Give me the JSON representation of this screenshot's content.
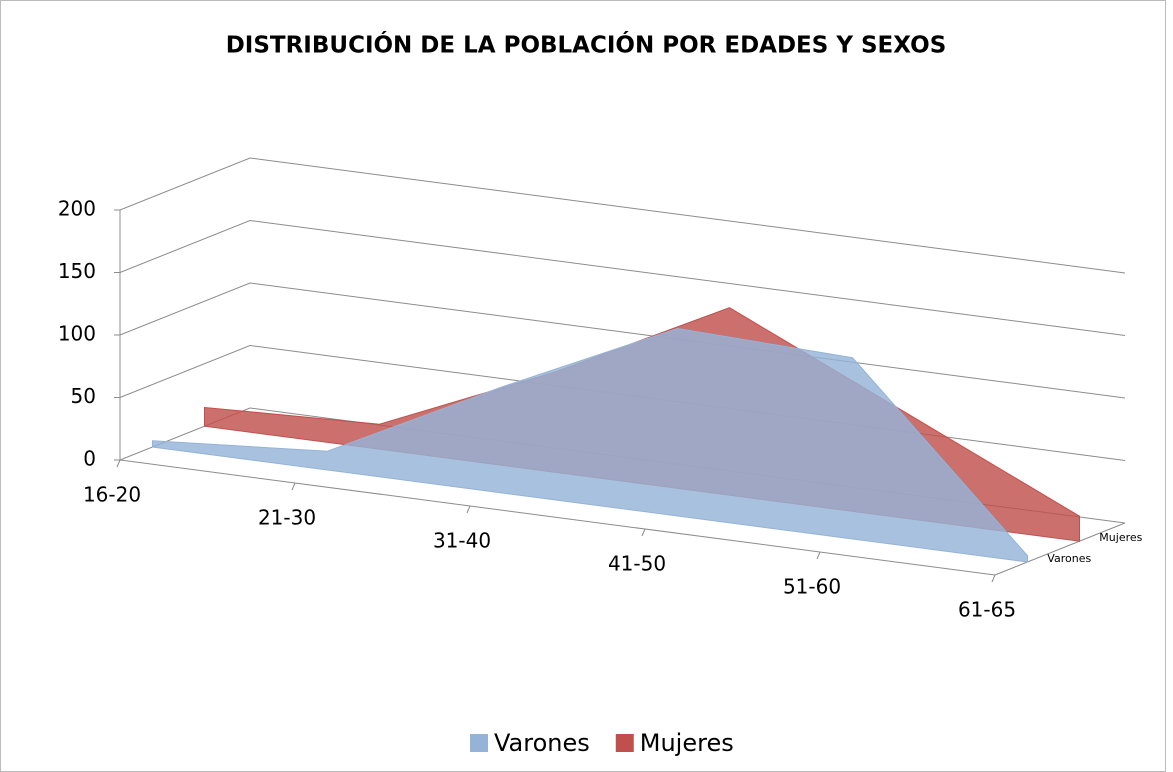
{
  "chart_data": {
    "type": "area3d",
    "title": "DISTRIBUCIÓN DE LA POBLACIÓN POR EDADES Y SEXOS",
    "categories": [
      "16-20",
      "21-30",
      "31-40",
      "41-50",
      "51-60",
      "61-65"
    ],
    "series": [
      {
        "name": "Varones",
        "color": "#95b3d7",
        "values": [
          5,
          15,
          85,
          150,
          145,
          5
        ]
      },
      {
        "name": "Mujeres",
        "color": "#c0504d",
        "values": [
          15,
          20,
          80,
          150,
          85,
          20
        ]
      }
    ],
    "ylim": [
      0,
      200
    ],
    "yticks": [
      0,
      50,
      100,
      150,
      200
    ],
    "grid": true,
    "legend": "bottom"
  }
}
